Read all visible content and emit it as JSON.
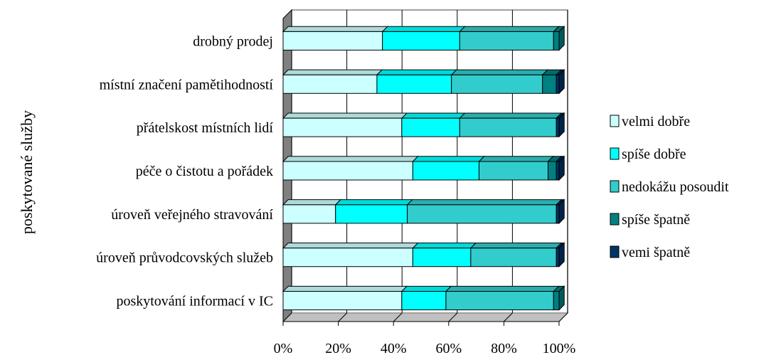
{
  "chart_data": {
    "type": "bar",
    "orientation": "horizontal",
    "stacked": "percent",
    "ylabel": "poskytované služby",
    "xlabel": "",
    "xlim": [
      0,
      100
    ],
    "x_ticks": [
      "0%",
      "20%",
      "40%",
      "60%",
      "80%",
      "100%"
    ],
    "grid": true,
    "legend_position": "right",
    "categories": [
      "drobný prodej",
      "místní značení pamětihodností",
      "přátelskost místních lidí",
      "péče o čistotu a pořádek",
      "úroveň veřejného stravování",
      "úroveň průvodcovských služeb",
      "poskytování informací v IC"
    ],
    "series": [
      {
        "name": "velmi dobře",
        "color": "#ccffff",
        "values": [
          36,
          34,
          43,
          47,
          19,
          47,
          43
        ]
      },
      {
        "name": "spíše dobře",
        "color": "#00ffff",
        "values": [
          28,
          27,
          21,
          24,
          26,
          21,
          16
        ]
      },
      {
        "name": "nedokážu posoudit",
        "color": "#33cccc",
        "values": [
          34,
          33,
          35,
          25,
          54,
          31,
          39
        ]
      },
      {
        "name": "spíše špatně",
        "color": "#008080",
        "values": [
          2,
          5,
          0,
          3,
          0,
          0,
          2
        ]
      },
      {
        "name": "vemi špatně",
        "color": "#003366",
        "values": [
          0,
          1,
          1,
          1,
          1,
          1,
          0
        ]
      }
    ]
  }
}
